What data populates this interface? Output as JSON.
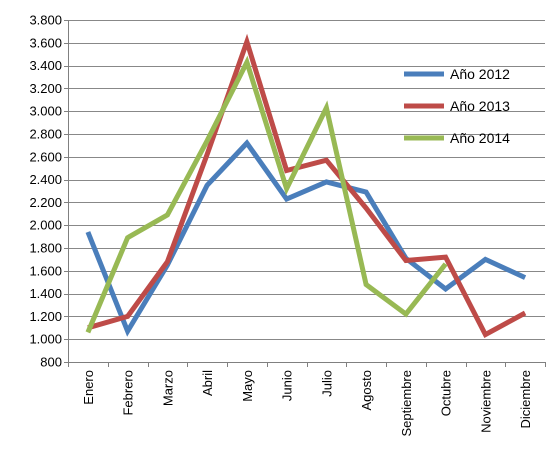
{
  "chart_data": {
    "type": "line",
    "title": "",
    "xlabel": "",
    "ylabel": "",
    "categories": [
      "Enero",
      "Febrero",
      "Marzo",
      "Abril",
      "Mayo",
      "Junio",
      "Julio",
      "Agosto",
      "Septiembre",
      "Octubre",
      "Noviembre",
      "Diciembre"
    ],
    "ylim": [
      800,
      3800
    ],
    "yticks": [
      800,
      1000,
      1200,
      1400,
      1600,
      1800,
      2000,
      2200,
      2400,
      2600,
      2800,
      3000,
      3200,
      3400,
      3600,
      3800
    ],
    "ytick_labels": [
      "800",
      "1.000",
      "1.200",
      "1.400",
      "1.600",
      "1.800",
      "2.000",
      "2.200",
      "2.400",
      "2.600",
      "2.800",
      "3.000",
      "3.200",
      "3.400",
      "3.600",
      "3.800"
    ],
    "grid": true,
    "legend_position": "top-right",
    "series": [
      {
        "name": "Año 2012",
        "color": "#4a7ebb",
        "values": [
          1940,
          1070,
          1650,
          2350,
          2720,
          2230,
          2380,
          2290,
          1710,
          1440,
          1700,
          1540
        ]
      },
      {
        "name": "Año 2013",
        "color": "#be4b48",
        "values": [
          1100,
          1200,
          1680,
          2620,
          3610,
          2480,
          2570,
          2150,
          1690,
          1720,
          1040,
          1230
        ]
      },
      {
        "name": "Año 2014",
        "color": "#98b954",
        "values": [
          1060,
          1890,
          2090,
          2740,
          3430,
          2320,
          3030,
          1480,
          1220,
          1660,
          null,
          null
        ]
      }
    ]
  }
}
